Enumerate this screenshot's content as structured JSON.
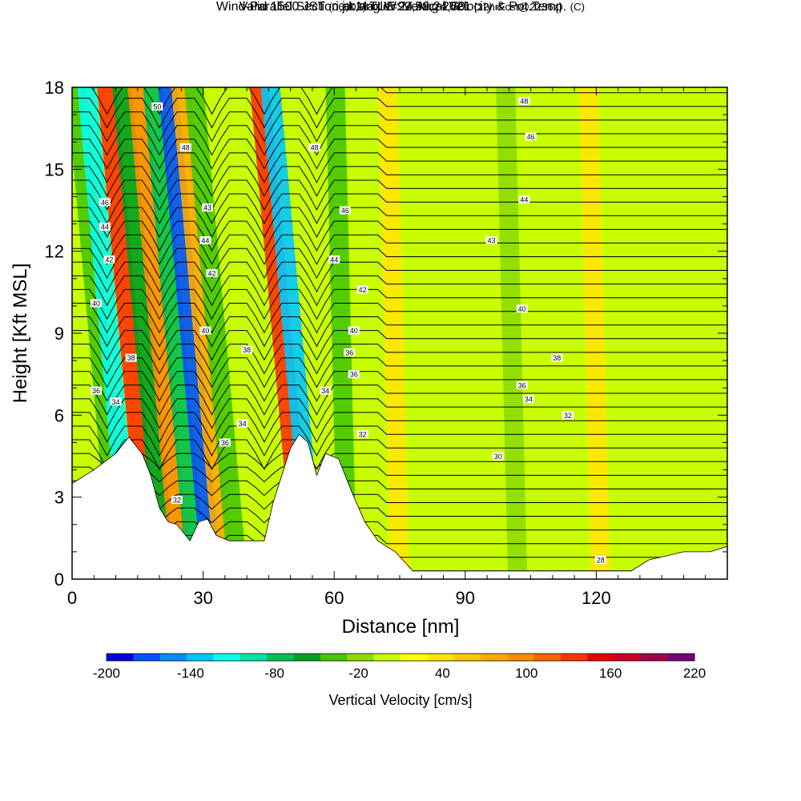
{
  "title": {
    "main": "Wind-Parallel Section at Max W: Vertical Velocity & Pot.Temp.",
    "copyright": "(C)",
    "valid_a": "Valid 1500 JST",
    "valid_z": "(0600Z)",
    "valid_b": "TUE 24 Aug 2021",
    "fcst": "[12hrFcst@2236z]",
    "section": "i,j,k,angle=92,59,24,50"
  },
  "chart_data": {
    "type": "heatmap",
    "xlabel": "Distance [nm]",
    "ylabel": "Height [Kft MSL]",
    "xlim": [
      0,
      150
    ],
    "ylim": [
      0,
      18
    ],
    "x_ticks": [
      0,
      30,
      60,
      90,
      120
    ],
    "y_ticks": [
      0,
      3,
      6,
      9,
      12,
      15,
      18
    ],
    "colorbar": {
      "label": "Vertical Velocity [cm/s]",
      "min": -200,
      "max": 220,
      "step": 20,
      "tick_labels": [
        -200,
        -140,
        -80,
        -20,
        40,
        100,
        160,
        220
      ],
      "colors": [
        "#0000e6",
        "#0050ff",
        "#008cff",
        "#00c8ff",
        "#00ffee",
        "#00e6a0",
        "#00c050",
        "#00a020",
        "#46c800",
        "#8cdc00",
        "#c8ff00",
        "#ffff00",
        "#ffe600",
        "#ffc800",
        "#ffaa00",
        "#ff8c00",
        "#ff6400",
        "#ff3200",
        "#e60000",
        "#c80028",
        "#a00050",
        "#780078"
      ]
    },
    "background_velocity_cm_s": 0,
    "updrafts_downdrafts": [
      {
        "x": 11,
        "velocity": -40
      },
      {
        "x": 13.5,
        "velocity": -120
      },
      {
        "x": 18,
        "velocity": 140
      },
      {
        "x": 21.5,
        "velocity": -60
      },
      {
        "x": 25,
        "velocity": 100
      },
      {
        "x": 28.5,
        "velocity": -70
      },
      {
        "x": 32,
        "velocity": -180
      },
      {
        "x": 35,
        "velocity": 80
      },
      {
        "x": 38,
        "velocity": -30
      },
      {
        "x": 53,
        "velocity": 150
      },
      {
        "x": 55.5,
        "velocity": -130
      },
      {
        "x": 63,
        "velocity": -30
      },
      {
        "x": 75,
        "velocity": 40
      },
      {
        "x": 102,
        "velocity": -20
      },
      {
        "x": 121,
        "velocity": 50
      }
    ],
    "terrain": [
      [
        0,
        3.5
      ],
      [
        5,
        4
      ],
      [
        10,
        4.6
      ],
      [
        13,
        5.2
      ],
      [
        16,
        4.6
      ],
      [
        18,
        3.8
      ],
      [
        20,
        2.6
      ],
      [
        22,
        2.1
      ],
      [
        24,
        2.0
      ],
      [
        27,
        1.4
      ],
      [
        29,
        2.1
      ],
      [
        31,
        2.2
      ],
      [
        33,
        1.6
      ],
      [
        36,
        1.4
      ],
      [
        40,
        1.4
      ],
      [
        44,
        1.4
      ],
      [
        46,
        2.8
      ],
      [
        48,
        3.8
      ],
      [
        50,
        4.8
      ],
      [
        52,
        5.3
      ],
      [
        54,
        5.0
      ],
      [
        56,
        3.8
      ],
      [
        58,
        4.6
      ],
      [
        61,
        4.4
      ],
      [
        64,
        3.2
      ],
      [
        67,
        2.1
      ],
      [
        70,
        1.4
      ],
      [
        74,
        1.0
      ],
      [
        78,
        0.3
      ],
      [
        90,
        0.3
      ],
      [
        110,
        0.3
      ],
      [
        128,
        0.3
      ],
      [
        132,
        0.7
      ],
      [
        140,
        1.0
      ],
      [
        146,
        1.0
      ],
      [
        150,
        1.2
      ]
    ],
    "isentrope_labels_K": [
      {
        "text": "50",
        "x": 19.5,
        "y": 17.3
      },
      {
        "text": "48",
        "x": 26,
        "y": 15.8
      },
      {
        "text": "48",
        "x": 55.5,
        "y": 15.8
      },
      {
        "text": "48",
        "x": 103.5,
        "y": 17.5
      },
      {
        "text": "46",
        "x": 105,
        "y": 16.2
      },
      {
        "text": "46",
        "x": 7.5,
        "y": 13.8
      },
      {
        "text": "46",
        "x": 62.5,
        "y": 13.5
      },
      {
        "text": "44",
        "x": 103.5,
        "y": 13.9
      },
      {
        "text": "43",
        "x": 31,
        "y": 13.6
      },
      {
        "text": "44",
        "x": 7.5,
        "y": 12.9
      },
      {
        "text": "44",
        "x": 30.5,
        "y": 12.4
      },
      {
        "text": "43",
        "x": 96,
        "y": 12.4
      },
      {
        "text": "42",
        "x": 8.5,
        "y": 11.7
      },
      {
        "text": "44",
        "x": 60,
        "y": 11.7
      },
      {
        "text": "42",
        "x": 32,
        "y": 11.2
      },
      {
        "text": "42",
        "x": 66.5,
        "y": 10.6
      },
      {
        "text": "40",
        "x": 5.5,
        "y": 10.1
      },
      {
        "text": "40",
        "x": 103,
        "y": 9.9
      },
      {
        "text": "40",
        "x": 30.5,
        "y": 9.1
      },
      {
        "text": "40",
        "x": 64.5,
        "y": 9.1
      },
      {
        "text": "38",
        "x": 40,
        "y": 8.4
      },
      {
        "text": "36",
        "x": 63.5,
        "y": 8.3
      },
      {
        "text": "38",
        "x": 13.5,
        "y": 8.1
      },
      {
        "text": "38",
        "x": 111,
        "y": 8.1
      },
      {
        "text": "36",
        "x": 64.5,
        "y": 7.5
      },
      {
        "text": "36",
        "x": 103,
        "y": 7.1
      },
      {
        "text": "36",
        "x": 5.5,
        "y": 6.9
      },
      {
        "text": "34",
        "x": 58,
        "y": 6.9
      },
      {
        "text": "34",
        "x": 104.5,
        "y": 6.6
      },
      {
        "text": "34",
        "x": 10,
        "y": 6.5
      },
      {
        "text": "32",
        "x": 113.5,
        "y": 6.0
      },
      {
        "text": "34",
        "x": 39,
        "y": 5.7
      },
      {
        "text": "32",
        "x": 66.5,
        "y": 5.3
      },
      {
        "text": "36",
        "x": 35,
        "y": 5.0
      },
      {
        "text": "30",
        "x": 97.5,
        "y": 4.5
      },
      {
        "text": "32",
        "x": 24,
        "y": 2.9
      },
      {
        "text": "28",
        "x": 121,
        "y": 0.7
      }
    ]
  }
}
